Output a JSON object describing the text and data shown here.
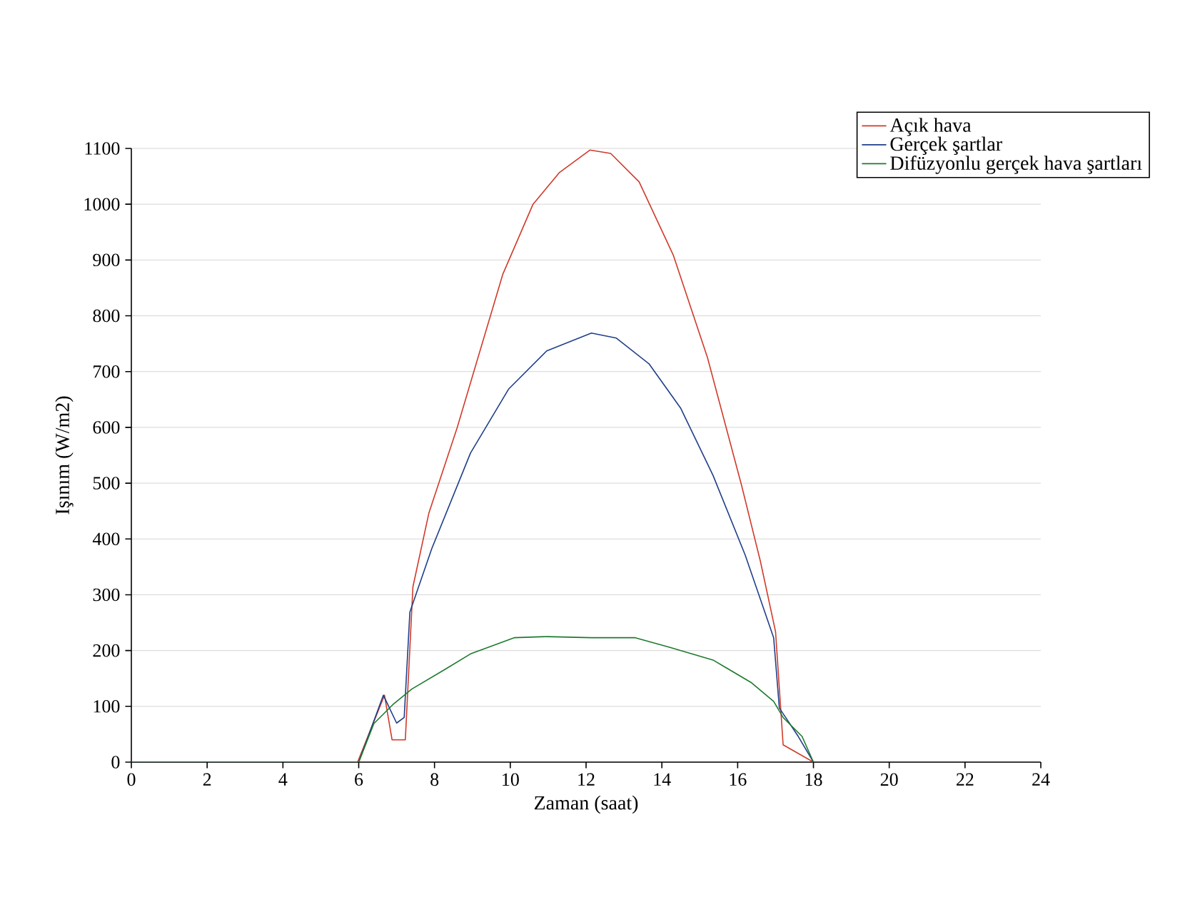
{
  "chart_data": {
    "type": "line",
    "xlabel": "Zaman (saat)",
    "ylabel": "Işınım (W/m2)",
    "xlim": [
      0,
      24
    ],
    "xticks": [
      0,
      2,
      4,
      6,
      8,
      10,
      12,
      14,
      16,
      18,
      20,
      22,
      24
    ],
    "ylim": [
      0,
      1100
    ],
    "yticks": [
      0,
      100,
      200,
      300,
      400,
      500,
      600,
      700,
      800,
      900,
      1000,
      1100
    ],
    "grid": "y",
    "legend": "top right",
    "marker": "none",
    "line_style": "solid",
    "series": [
      {
        "name": "Açık hava",
        "color": "#d03a2a",
        "x": [
          0,
          5.97,
          6.68,
          6.88,
          7.23,
          7.43,
          7.85,
          8.6,
          9.8,
          10.6,
          11.3,
          12.1,
          12.65,
          13.4,
          14.3,
          15.2,
          16.1,
          16.6,
          17.0,
          17.2,
          18.0
        ],
        "values": [
          0,
          0,
          120,
          40,
          40,
          314,
          446,
          600,
          874,
          1000,
          1057,
          1097,
          1091,
          1040,
          909,
          726,
          497,
          360,
          234,
          31,
          0
        ]
      },
      {
        "name": "Gerçek şartlar",
        "color": "#1f3f8a",
        "x": [
          0,
          6.0,
          6.65,
          7.0,
          7.2,
          7.35,
          7.93,
          8.95,
          9.96,
          10.96,
          12.14,
          12.8,
          13.66,
          14.5,
          15.35,
          16.2,
          16.95,
          17.1,
          17.6,
          18.0
        ],
        "values": [
          0,
          0,
          120,
          70,
          80,
          269,
          383,
          554,
          669,
          737,
          769,
          760,
          714,
          634,
          514,
          371,
          223,
          97,
          46,
          0
        ]
      },
      {
        "name": "Difüzyonlu gerçek hava şartları",
        "color": "#1e7a2e",
        "x": [
          0,
          6.0,
          6.4,
          6.9,
          7.4,
          8.27,
          8.95,
          10.1,
          10.97,
          12.14,
          13.3,
          14.2,
          15.35,
          16.35,
          16.95,
          17.2,
          17.7,
          18.0
        ],
        "values": [
          0,
          0,
          69,
          103,
          131,
          166,
          194,
          223,
          225,
          223,
          223,
          206,
          183,
          143,
          109,
          80,
          46,
          0
        ]
      }
    ]
  }
}
